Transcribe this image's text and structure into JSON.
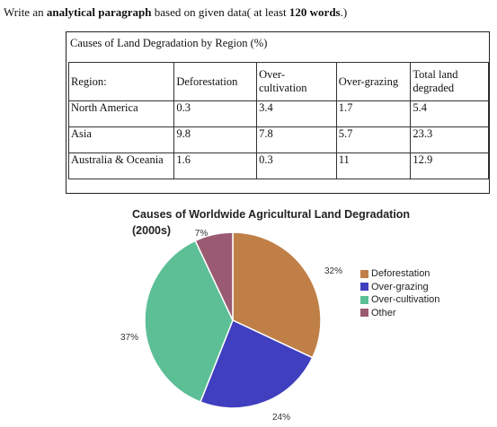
{
  "instruction": {
    "pre": "Write an ",
    "bold1": "analytical paragraph",
    "mid": " based on given data( at least ",
    "bold2": "120 words",
    "post": ".)"
  },
  "table": {
    "caption": "Causes of Land Degradation by Region (%)",
    "headers": [
      "Region:",
      "Deforestation",
      "Over-\ncultivation",
      "Over-grazing",
      "Total land\ndegraded"
    ],
    "rows": [
      [
        "North America",
        "0.3",
        "3.4",
        "1.7",
        "5.4"
      ],
      [
        "Asia",
        "9.8",
        "7.8",
        "5.7",
        "23.3"
      ],
      [
        "Australia & Oceania",
        "1.6",
        "0.3",
        "11",
        "12.9"
      ]
    ]
  },
  "chart_data": {
    "type": "pie",
    "title": "Causes of Worldwide Agricultural Land Degradation (2000s)",
    "slices": [
      {
        "name": "Deforestation",
        "value": 32,
        "label": "32%",
        "color": "#c07f47"
      },
      {
        "name": "Over-grazing",
        "value": 24,
        "label": "24%",
        "color": "#3f3fbf"
      },
      {
        "name": "Over-cultivation",
        "value": 37,
        "label": "37%",
        "color": "#5cbf96"
      },
      {
        "name": "Other",
        "value": 7,
        "label": "7%",
        "color": "#9a5a72"
      }
    ],
    "legend_position": "right"
  }
}
